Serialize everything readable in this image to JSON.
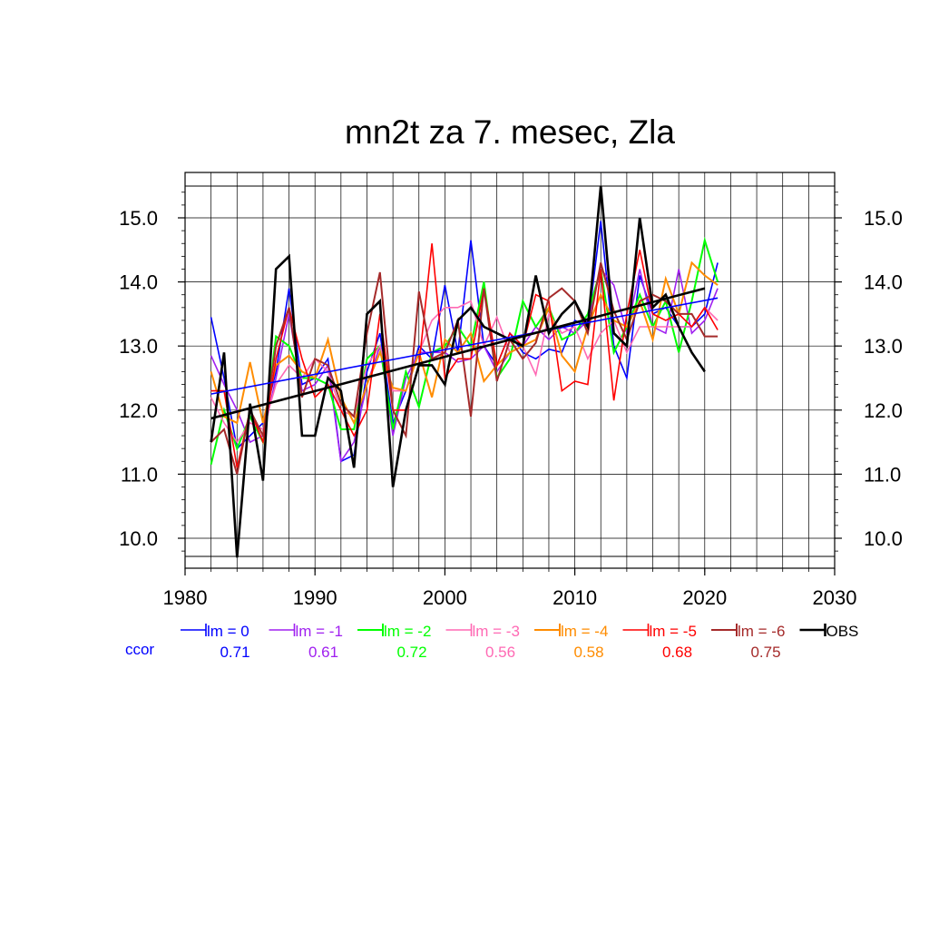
{
  "chart_data": {
    "type": "line",
    "title": "mn2t za 7. mesec, Zla",
    "xlabel": "",
    "ylabel": "",
    "xlim": [
      1980,
      2030
    ],
    "ylim": [
      9.7,
      15.5
    ],
    "x_ticks": [
      "1980",
      "1990",
      "2000",
      "2010",
      "2020",
      "2030"
    ],
    "y_ticks": [
      "10.0",
      "11.0",
      "12.0",
      "13.0",
      "14.0",
      "15.0"
    ],
    "grid": true,
    "legend_position": "bottom",
    "ccor_label": "ccor",
    "ccor_color": "#0000ff",
    "x": [
      1982,
      1983,
      1984,
      1985,
      1986,
      1987,
      1988,
      1989,
      1990,
      1991,
      1992,
      1993,
      1994,
      1995,
      1996,
      1997,
      1998,
      1999,
      2000,
      2001,
      2002,
      2003,
      2004,
      2005,
      2006,
      2007,
      2008,
      2009,
      2010,
      2011,
      2012,
      2013,
      2014,
      2015,
      2016,
      2017,
      2018,
      2019,
      2020,
      2021
    ],
    "series": [
      {
        "name": "lm = 0",
        "ccor": "0.71",
        "color": "#0000ff",
        "line_width": 1.6,
        "values": [
          13.45,
          12.5,
          11.4,
          11.6,
          11.8,
          12.6,
          13.9,
          12.4,
          12.5,
          12.8,
          11.2,
          11.3,
          12.6,
          13.2,
          11.8,
          12.3,
          13.0,
          12.8,
          13.95,
          12.9,
          14.65,
          13.0,
          12.7,
          13.2,
          12.9,
          12.8,
          12.95,
          12.9,
          13.4,
          13.3,
          14.95,
          13.0,
          12.5,
          14.1,
          13.5,
          13.6,
          13.3,
          13.3,
          13.5,
          14.3
        ]
      },
      {
        "name": "lm = -1",
        "ccor": "0.61",
        "color": "#a020f0",
        "line_width": 1.6,
        "values": [
          12.85,
          12.4,
          12.0,
          11.5,
          11.6,
          12.5,
          13.5,
          12.3,
          12.4,
          12.7,
          11.2,
          11.5,
          12.4,
          13.0,
          11.6,
          12.5,
          12.9,
          12.9,
          12.9,
          12.75,
          12.8,
          13.0,
          12.6,
          12.9,
          13.0,
          13.3,
          13.1,
          13.3,
          13.2,
          13.4,
          14.2,
          13.95,
          13.2,
          14.2,
          13.3,
          13.2,
          14.2,
          13.2,
          13.4,
          13.9
        ]
      },
      {
        "name": "lm = -2",
        "ccor": "0.72",
        "color": "#00ff00",
        "line_width": 2.0,
        "values": [
          11.15,
          12.0,
          11.4,
          11.9,
          11.5,
          13.15,
          13.0,
          12.5,
          12.5,
          12.4,
          11.7,
          11.7,
          12.8,
          13.0,
          11.7,
          12.6,
          12.05,
          12.9,
          13.0,
          13.3,
          13.0,
          14.0,
          12.5,
          12.8,
          13.7,
          13.3,
          13.6,
          13.1,
          13.2,
          13.5,
          14.2,
          12.9,
          13.3,
          13.8,
          13.3,
          13.7,
          12.9,
          13.7,
          14.65,
          14.0
        ]
      },
      {
        "name": "lm = -3",
        "ccor": "0.56",
        "color": "#ff69b4",
        "line_width": 1.6,
        "values": [
          12.2,
          11.8,
          11.5,
          11.8,
          11.7,
          12.4,
          12.7,
          12.5,
          12.8,
          12.6,
          12.0,
          11.9,
          12.7,
          13.0,
          12.3,
          12.3,
          12.9,
          13.4,
          13.6,
          13.6,
          13.7,
          13.0,
          13.45,
          12.9,
          13.0,
          12.55,
          13.5,
          13.2,
          13.3,
          12.8,
          13.2,
          13.4,
          12.9,
          13.3,
          13.3,
          13.3,
          13.3,
          13.3,
          13.6,
          13.4
        ]
      },
      {
        "name": "lm = -4",
        "ccor": "0.58",
        "color": "#ff8c00",
        "line_width": 2.0,
        "values": [
          12.6,
          11.9,
          11.8,
          12.75,
          11.8,
          12.7,
          12.85,
          12.6,
          12.5,
          13.1,
          12.2,
          11.8,
          12.4,
          12.9,
          12.35,
          12.3,
          12.9,
          12.2,
          13.1,
          12.9,
          13.2,
          12.45,
          12.7,
          12.9,
          13.0,
          13.1,
          13.6,
          12.85,
          12.6,
          13.3,
          13.8,
          13.4,
          13.3,
          13.7,
          13.1,
          14.05,
          13.5,
          14.3,
          14.1,
          13.95
        ]
      },
      {
        "name": "lm = -5",
        "ccor": "0.68",
        "color": "#ff0000",
        "line_width": 1.6,
        "values": [
          12.3,
          12.3,
          11.1,
          12.0,
          11.5,
          12.8,
          13.6,
          12.8,
          12.2,
          12.4,
          12.0,
          11.6,
          12.0,
          13.5,
          12.0,
          12.0,
          12.7,
          14.6,
          12.5,
          12.8,
          12.8,
          13.9,
          12.7,
          13.2,
          13.0,
          13.8,
          13.7,
          12.3,
          12.45,
          12.4,
          14.2,
          12.15,
          13.5,
          14.5,
          13.5,
          13.4,
          13.5,
          13.3,
          13.6,
          13.25
        ]
      },
      {
        "name": "lm = -6",
        "ccor": "0.75",
        "color": "#a52a2a",
        "line_width": 2.0,
        "values": [
          11.5,
          11.7,
          11.0,
          12.0,
          11.6,
          13.0,
          13.6,
          12.2,
          12.8,
          12.7,
          12.1,
          11.9,
          13.2,
          14.15,
          12.0,
          11.6,
          13.85,
          12.8,
          12.9,
          13.4,
          11.9,
          13.9,
          12.45,
          13.1,
          12.8,
          13.05,
          13.75,
          13.9,
          13.7,
          13.2,
          14.3,
          13.55,
          13.1,
          13.7,
          13.8,
          13.7,
          13.5,
          13.5,
          13.15,
          13.15
        ]
      },
      {
        "name": "OBS",
        "ccor": "",
        "color": "#000000",
        "line_width": 2.6,
        "values": [
          11.5,
          12.9,
          9.7,
          12.1,
          10.9,
          14.2,
          14.4,
          11.6,
          11.6,
          12.5,
          12.3,
          11.1,
          13.5,
          13.7,
          10.8,
          12.0,
          12.7,
          12.7,
          12.4,
          13.4,
          13.6,
          13.3,
          13.2,
          13.1,
          13.0,
          14.1,
          13.2,
          13.5,
          13.7,
          13.3,
          15.5,
          13.2,
          13.0,
          15.0,
          13.6,
          13.8,
          13.3,
          12.9,
          12.6,
          null
        ]
      }
    ],
    "trend_lines": [
      {
        "name": "lm = 0 trend",
        "color": "#0000ff",
        "line_width": 1.6,
        "x": [
          1982,
          2021
        ],
        "values": [
          12.25,
          13.75
        ]
      },
      {
        "name": "OBS trend",
        "color": "#000000",
        "line_width": 2.6,
        "x": [
          1982,
          2020
        ],
        "values": [
          11.87,
          13.9
        ]
      }
    ]
  }
}
